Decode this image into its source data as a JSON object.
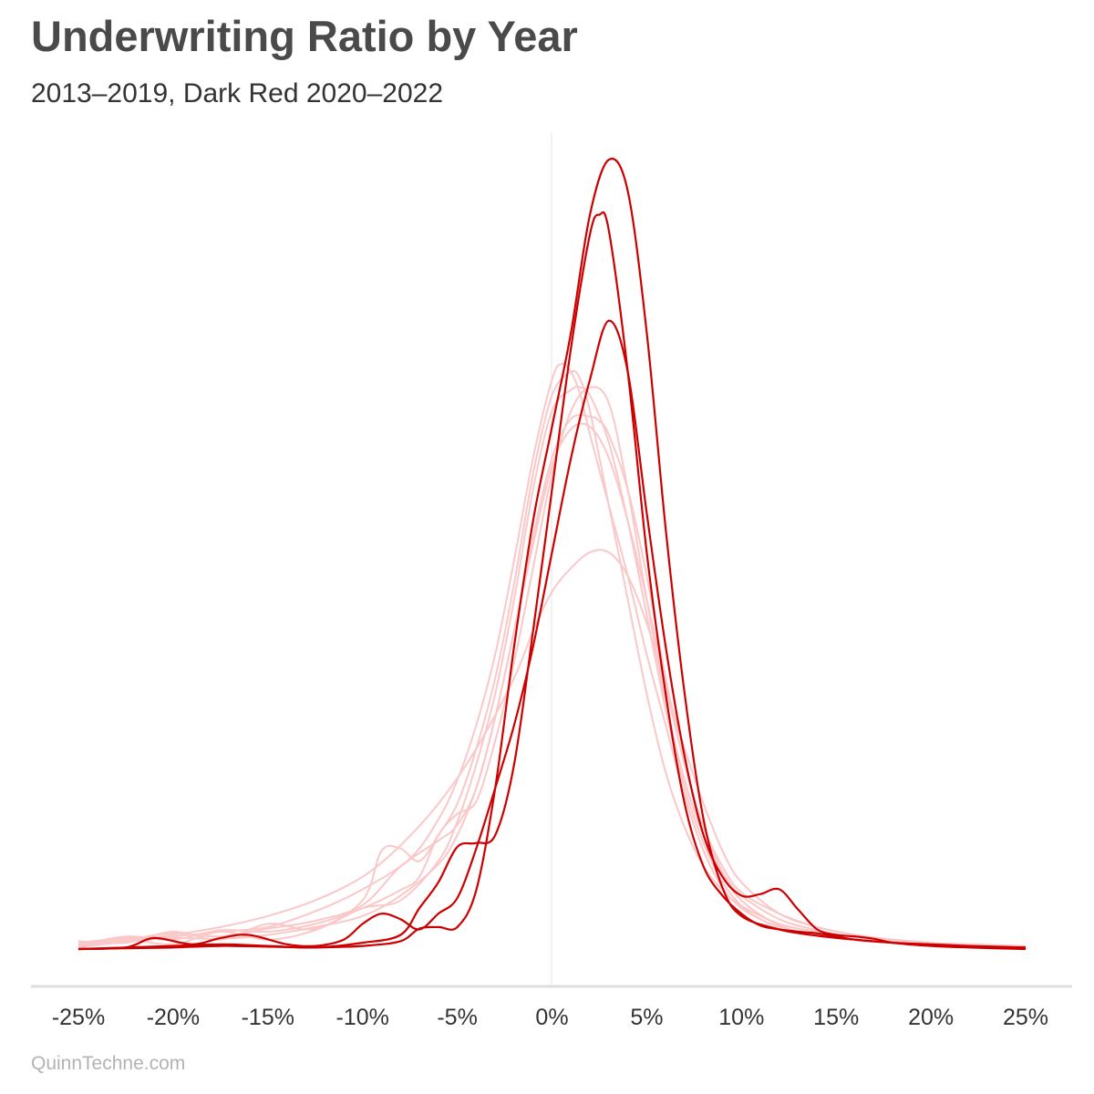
{
  "title": "Underwriting Ratio by Year",
  "subtitle": "2013–2019, Dark Red 2020–2022",
  "credit": "QuinnTechne.com",
  "colors": {
    "light_series": "#fac8c8",
    "dark_series": "#cc0000",
    "zero_line": "#eeeeee",
    "axis_line": "#dddddd",
    "text": "#333333"
  },
  "chart_data": {
    "type": "line",
    "title": "Underwriting Ratio by Year",
    "subtitle": "2013–2019, Dark Red 2020–2022",
    "xlabel": "",
    "ylabel": "",
    "xlim": [
      -25,
      25
    ],
    "ylim": [
      0,
      0.104
    ],
    "x_ticks": [
      -25,
      -20,
      -15,
      -10,
      -5,
      0,
      5,
      10,
      15,
      20,
      25
    ],
    "x_tick_labels": [
      "-25%",
      "-20%",
      "-15%",
      "-10%",
      "-5%",
      "0%",
      "5%",
      "10%",
      "15%",
      "20%",
      "25%"
    ],
    "y_axis_shown": false,
    "grid": false,
    "legend": "none",
    "series": [
      {
        "group": "2013–2019",
        "x": [
          -25,
          -22.5,
          -20,
          -17.5,
          -15,
          -12.5,
          -10,
          -7.5,
          -6,
          -5,
          -4,
          -3,
          -2,
          -1,
          0,
          0.5,
          1,
          1.5,
          2,
          3,
          4,
          5,
          6,
          7,
          8,
          9,
          10,
          11,
          12,
          14,
          16,
          18,
          20,
          22,
          25
        ],
        "y": [
          0.0008,
          0.0014,
          0.0016,
          0.0022,
          0.0028,
          0.0048,
          0.0076,
          0.0115,
          0.0165,
          0.0215,
          0.0285,
          0.0375,
          0.0495,
          0.0625,
          0.0725,
          0.0745,
          0.0735,
          0.0705,
          0.0655,
          0.0565,
          0.0475,
          0.0375,
          0.0285,
          0.0195,
          0.0125,
          0.0078,
          0.0052,
          0.0038,
          0.0028,
          0.0018,
          0.0011,
          0.0008,
          0.0006,
          0.0004,
          0.0003
        ]
      },
      {
        "group": "2013–2019",
        "x": [
          -25,
          -22.5,
          -20,
          -17.5,
          -15,
          -12.5,
          -10,
          -8,
          -6,
          -5,
          -4,
          -3,
          -2,
          -1,
          0,
          1,
          1.5,
          2,
          3,
          4,
          5,
          6,
          7,
          8,
          9,
          10,
          11,
          12,
          14,
          16,
          18,
          20,
          22,
          25
        ],
        "y": [
          0.0002,
          0.0012,
          0.0006,
          0.0022,
          0.0012,
          0.0024,
          0.0052,
          0.0062,
          0.0112,
          0.0162,
          0.0235,
          0.0325,
          0.0445,
          0.0585,
          0.0685,
          0.0712,
          0.0715,
          0.0705,
          0.0645,
          0.0545,
          0.0425,
          0.0305,
          0.0205,
          0.0135,
          0.0085,
          0.0055,
          0.0038,
          0.0028,
          0.0018,
          0.0012,
          0.0008,
          0.0005,
          0.0004,
          0.0002
        ]
      },
      {
        "group": "2013–2019",
        "x": [
          -25,
          -22.5,
          -20,
          -17.5,
          -15,
          -12.5,
          -10,
          -9,
          -8,
          -7,
          -6,
          -5,
          -4,
          -3,
          -2,
          -1,
          0,
          1,
          1.5,
          2,
          3,
          4,
          5,
          6,
          7,
          8,
          9,
          10,
          12,
          14,
          16,
          18,
          20,
          22,
          25
        ],
        "y": [
          0.001,
          0.0008,
          0.0022,
          0.0012,
          0.0032,
          0.0026,
          0.0062,
          0.0125,
          0.0128,
          0.0112,
          0.0145,
          0.0185,
          0.0255,
          0.0345,
          0.0465,
          0.0605,
          0.0705,
          0.0735,
          0.0725,
          0.0685,
          0.0565,
          0.0445,
          0.0325,
          0.0225,
          0.0155,
          0.0105,
          0.0075,
          0.0055,
          0.0032,
          0.0022,
          0.0016,
          0.0012,
          0.0008,
          0.0005,
          0.0003
        ]
      },
      {
        "group": "2013–2019",
        "x": [
          -25,
          -22.5,
          -20,
          -17.5,
          -15,
          -12.5,
          -10,
          -8,
          -7,
          -6,
          -5,
          -4,
          -3,
          -2,
          -1,
          0,
          1,
          2,
          3,
          4,
          5,
          6,
          7,
          8,
          9,
          10,
          12,
          14,
          16,
          18,
          20,
          22,
          25
        ],
        "y": [
          0.0004,
          0.0016,
          0.0012,
          0.0024,
          0.0022,
          0.0032,
          0.0052,
          0.0075,
          0.0092,
          0.0145,
          0.0172,
          0.0188,
          0.0265,
          0.0365,
          0.0485,
          0.0605,
          0.0685,
          0.0715,
          0.0695,
          0.0585,
          0.0445,
          0.0315,
          0.0215,
          0.0145,
          0.0098,
          0.0068,
          0.0038,
          0.0024,
          0.0015,
          0.001,
          0.0007,
          0.0005,
          0.0003
        ]
      },
      {
        "group": "2013–2019",
        "x": [
          -25,
          -22.5,
          -20,
          -17.5,
          -15,
          -12.5,
          -10,
          -8,
          -6,
          -5,
          -4,
          -3,
          -2,
          -1,
          0,
          1,
          2,
          2.5,
          3,
          4,
          5,
          6,
          7,
          8,
          9,
          10,
          12,
          14,
          16,
          18,
          20,
          22,
          25
        ],
        "y": [
          0.0006,
          0.0012,
          0.002,
          0.0016,
          0.0026,
          0.0036,
          0.0056,
          0.0105,
          0.0138,
          0.0158,
          0.0205,
          0.0295,
          0.0405,
          0.0525,
          0.0625,
          0.0675,
          0.0678,
          0.0672,
          0.0655,
          0.0585,
          0.0475,
          0.0345,
          0.0235,
          0.0155,
          0.0105,
          0.0072,
          0.0045,
          0.0028,
          0.0018,
          0.0012,
          0.0008,
          0.0006,
          0.0004
        ]
      },
      {
        "group": "2013–2019",
        "x": [
          -25,
          -22.5,
          -20,
          -17.5,
          -15,
          -12.5,
          -10,
          -8,
          -6,
          -5,
          -4,
          -3,
          -2,
          -1,
          0,
          1,
          2,
          3,
          4,
          5,
          6,
          7,
          8,
          9,
          10,
          12,
          14,
          16,
          18,
          20,
          22,
          25
        ],
        "y": [
          0.0003,
          0.0009,
          0.0014,
          0.0013,
          0.0018,
          0.0028,
          0.0042,
          0.0068,
          0.0108,
          0.0145,
          0.0205,
          0.0295,
          0.0405,
          0.0515,
          0.0615,
          0.0662,
          0.0665,
          0.0625,
          0.0545,
          0.0445,
          0.0335,
          0.0235,
          0.0155,
          0.0098,
          0.0062,
          0.003,
          0.0018,
          0.0012,
          0.0009,
          0.0006,
          0.0004,
          0.0003
        ]
      },
      {
        "group": "2013–2019",
        "x": [
          -25,
          -22.5,
          -20,
          -17.5,
          -15,
          -12.5,
          -10,
          -8,
          -6,
          -4,
          -2,
          -1,
          0,
          1,
          2,
          3,
          4,
          5,
          6,
          7,
          8,
          9,
          10,
          12,
          14,
          16,
          18,
          20,
          22,
          25
        ],
        "y": [
          0.0002,
          0.001,
          0.0018,
          0.0028,
          0.0042,
          0.0062,
          0.0092,
          0.0132,
          0.0185,
          0.0255,
          0.0345,
          0.0405,
          0.0455,
          0.0485,
          0.0505,
          0.0505,
          0.0475,
          0.0415,
          0.0335,
          0.0255,
          0.0185,
          0.0125,
          0.0085,
          0.0045,
          0.0028,
          0.0018,
          0.0012,
          0.0008,
          0.0005,
          0.0003
        ]
      },
      {
        "group": "2020–2022",
        "x": [
          -25,
          -22.5,
          -21,
          -19,
          -17.5,
          -16,
          -14,
          -12.5,
          -11,
          -10,
          -9,
          -8,
          -7,
          -6,
          -5,
          -4,
          -3,
          -2,
          -1,
          0,
          1,
          2,
          3,
          4,
          5,
          6,
          7,
          8,
          9,
          10,
          11,
          12,
          13,
          14,
          15,
          16,
          17,
          18,
          20,
          22,
          25
        ],
        "y": [
          0.0,
          0.0002,
          0.0014,
          0.0006,
          0.0014,
          0.0018,
          0.0006,
          0.0004,
          0.0012,
          0.0032,
          0.0045,
          0.0038,
          0.0025,
          0.0045,
          0.0065,
          0.0128,
          0.0205,
          0.0285,
          0.0385,
          0.0505,
          0.0625,
          0.0725,
          0.08,
          0.0735,
          0.0555,
          0.0385,
          0.0245,
          0.0145,
          0.0092,
          0.0068,
          0.007,
          0.0076,
          0.005,
          0.0025,
          0.0018,
          0.0016,
          0.0013,
          0.0008,
          0.0004,
          0.0002,
          0.0
        ]
      },
      {
        "group": "2020–2022",
        "x": [
          -25,
          -22.5,
          -20,
          -17.5,
          -15,
          -12.5,
          -10,
          -8,
          -7,
          -6,
          -5,
          -4,
          -3,
          -2,
          -1,
          0,
          1,
          2,
          2.5,
          3,
          4,
          5,
          6,
          7,
          8,
          9,
          10,
          11,
          12,
          13,
          14,
          16,
          18,
          20,
          22,
          25
        ],
        "y": [
          0.0,
          0.0002,
          0.0004,
          0.0006,
          0.0004,
          0.0002,
          0.0008,
          0.0018,
          0.0052,
          0.0085,
          0.013,
          0.0135,
          0.0145,
          0.0235,
          0.0405,
          0.0585,
          0.0765,
          0.091,
          0.0935,
          0.0915,
          0.0735,
          0.0505,
          0.0325,
          0.0185,
          0.0105,
          0.0068,
          0.0045,
          0.003,
          0.0025,
          0.0022,
          0.002,
          0.0012,
          0.0008,
          0.0006,
          0.0004,
          0.0002
        ]
      },
      {
        "group": "2020–2022",
        "x": [
          -25,
          -22.5,
          -20,
          -17.5,
          -15,
          -12.5,
          -10,
          -8,
          -7,
          -6,
          -5,
          -4,
          -3,
          -2,
          -1,
          0,
          1,
          2,
          3,
          4,
          5,
          6,
          7,
          8,
          9,
          10,
          12,
          14,
          16,
          18,
          20,
          22,
          25
        ],
        "y": [
          0.0,
          0.0001,
          0.0002,
          0.0004,
          0.0003,
          0.0002,
          0.0004,
          0.001,
          0.0026,
          0.0028,
          0.0028,
          0.0075,
          0.0205,
          0.0385,
          0.0545,
          0.0665,
          0.0785,
          0.0935,
          0.1005,
          0.0965,
          0.0785,
          0.0535,
          0.0325,
          0.0165,
          0.0078,
          0.0042,
          0.0025,
          0.0017,
          0.0012,
          0.0008,
          0.0005,
          0.0003,
          0.0002
        ]
      }
    ]
  }
}
